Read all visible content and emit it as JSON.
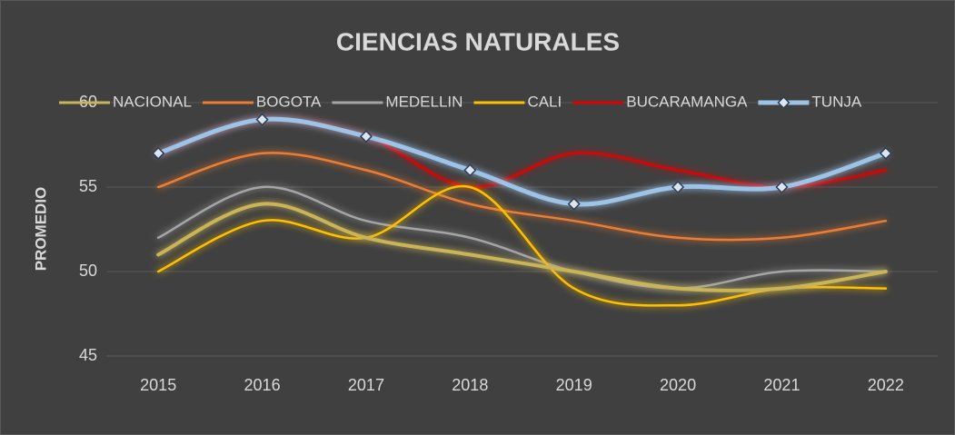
{
  "chart_data": {
    "type": "line",
    "title": "CIENCIAS NATURALES",
    "ylabel": "PROMEDIO",
    "categories": [
      "2015",
      "2016",
      "2017",
      "2018",
      "2019",
      "2020",
      "2021",
      "2022"
    ],
    "series": [
      {
        "name": "NACIONAL",
        "color": "#c9b458",
        "values": [
          51,
          54,
          52,
          51,
          50,
          49,
          49,
          50
        ]
      },
      {
        "name": "BOGOTA",
        "color": "#ed7d31",
        "values": [
          55,
          57,
          56,
          54,
          53,
          52,
          52,
          53
        ]
      },
      {
        "name": "MEDELLIN",
        "color": "#a5a5a5",
        "values": [
          52,
          55,
          53,
          52,
          50,
          49,
          50,
          50
        ]
      },
      {
        "name": "CALI",
        "color": "#ffc000",
        "values": [
          50,
          53,
          52,
          55,
          49,
          48,
          49,
          49
        ]
      },
      {
        "name": "BUCARAMANGA",
        "color": "#e00000",
        "values": [
          57,
          59,
          58,
          55,
          57,
          56,
          55,
          56
        ]
      },
      {
        "name": "TUNJA",
        "color": "#9dc3e6",
        "values": [
          57,
          59,
          58,
          56,
          54,
          55,
          55,
          57
        ],
        "markers": true
      }
    ],
    "ylim": [
      45,
      60
    ],
    "yticks": [
      45,
      50,
      55,
      60
    ],
    "grid": true
  }
}
